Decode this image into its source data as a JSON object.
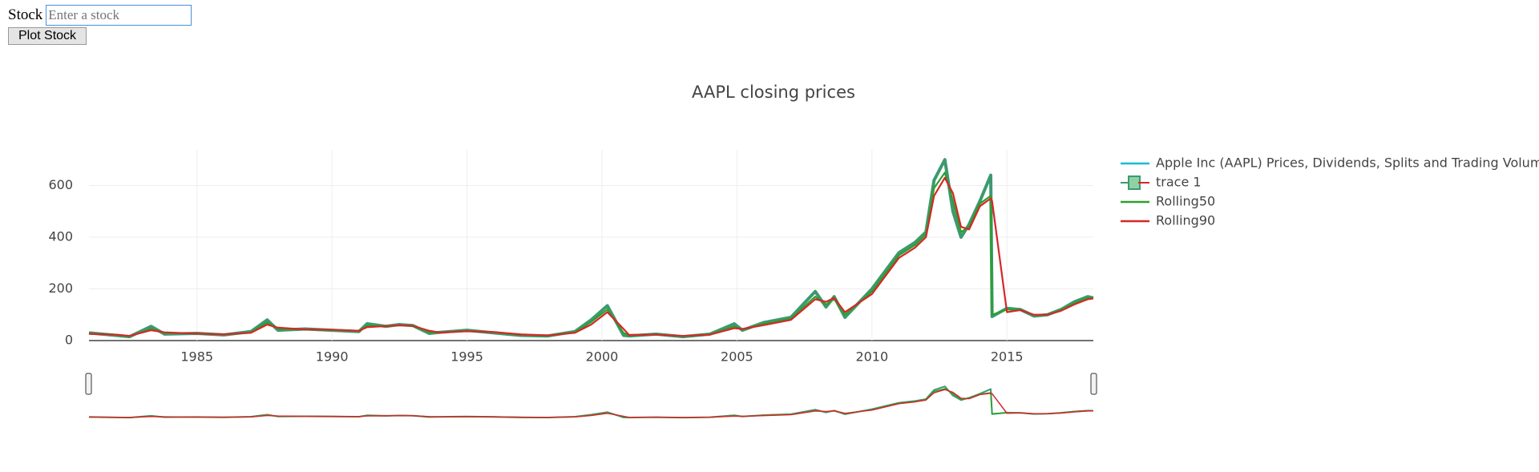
{
  "form": {
    "label": "Stock",
    "placeholder": "Enter a stock",
    "button": "Plot Stock"
  },
  "chart_data": {
    "type": "line",
    "title": "AAPL closing prices",
    "x": [
      1981,
      1982,
      1982.5,
      1983.3,
      1983.8,
      1985,
      1986,
      1987,
      1987.6,
      1988,
      1989,
      1990,
      1991,
      1991.3,
      1992,
      1992.5,
      1993,
      1993.6,
      1994,
      1995,
      1996,
      1997,
      1998,
      1999,
      1999.6,
      2000.2,
      2000.8,
      2001,
      2002,
      2003,
      2004,
      2004.9,
      2005.2,
      2006,
      2007,
      2007.9,
      2008.3,
      2008.6,
      2009,
      2010,
      2011,
      2011.6,
      2012,
      2012.3,
      2012.7,
      2013,
      2013.3,
      2013.6,
      2014,
      2014.4,
      2014.45,
      2015,
      2015.5,
      2016,
      2016.5,
      2017,
      2017.5,
      2018,
      2018.2
    ],
    "series": [
      {
        "name": "Apple Inc (AAPL) Prices, Dividends, Splits and Trading Volume",
        "color": "#17becf",
        "values": [
          30,
          20,
          15,
          55,
          25,
          28,
          22,
          35,
          80,
          40,
          45,
          40,
          35,
          65,
          55,
          62,
          58,
          28,
          32,
          40,
          30,
          20,
          18,
          35,
          80,
          135,
          20,
          18,
          25,
          15,
          25,
          65,
          40,
          70,
          90,
          190,
          130,
          170,
          90,
          200,
          340,
          380,
          420,
          620,
          700,
          500,
          400,
          450,
          540,
          640,
          93,
          125,
          120,
          95,
          100,
          120,
          150,
          170,
          165
        ]
      },
      {
        "name": "trace 1",
        "color": "#3d9970",
        "values": [
          30,
          20,
          15,
          55,
          25,
          28,
          22,
          35,
          80,
          40,
          45,
          40,
          35,
          65,
          55,
          62,
          58,
          28,
          32,
          40,
          30,
          20,
          18,
          35,
          80,
          135,
          20,
          18,
          25,
          15,
          25,
          65,
          40,
          70,
          90,
          190,
          130,
          170,
          90,
          200,
          340,
          380,
          420,
          620,
          700,
          500,
          400,
          450,
          540,
          640,
          93,
          125,
          120,
          95,
          100,
          120,
          150,
          170,
          165
        ]
      },
      {
        "name": "Rolling50",
        "color": "#2ca02c",
        "values": [
          28,
          22,
          17,
          45,
          30,
          27,
          23,
          32,
          70,
          45,
          43,
          41,
          37,
          58,
          55,
          60,
          57,
          32,
          31,
          38,
          32,
          22,
          19,
          32,
          72,
          120,
          30,
          19,
          24,
          17,
          24,
          55,
          42,
          65,
          85,
          170,
          140,
          160,
          100,
          190,
          330,
          370,
          410,
          590,
          650,
          540,
          420,
          440,
          530,
          560,
          100,
          120,
          118,
          98,
          100,
          118,
          145,
          165,
          165
        ]
      },
      {
        "name": "Rolling90",
        "color": "#d62728",
        "values": [
          26,
          23,
          18,
          40,
          32,
          27,
          24,
          30,
          62,
          50,
          43,
          42,
          38,
          52,
          56,
          59,
          57,
          38,
          31,
          36,
          33,
          24,
          20,
          30,
          62,
          110,
          45,
          22,
          23,
          18,
          23,
          48,
          45,
          60,
          80,
          160,
          150,
          165,
          110,
          180,
          320,
          360,
          400,
          560,
          630,
          570,
          440,
          430,
          520,
          550,
          540,
          110,
          118,
          100,
          100,
          115,
          140,
          160,
          163
        ]
      }
    ],
    "xlim": [
      1981,
      2018.2
    ],
    "xticks": [
      1985,
      1990,
      1995,
      2000,
      2005,
      2010,
      2015
    ],
    "ylim": [
      0,
      738
    ],
    "yticks": [
      0,
      200,
      400,
      600
    ],
    "grid": true,
    "legend": "right",
    "rangeslider": true
  }
}
